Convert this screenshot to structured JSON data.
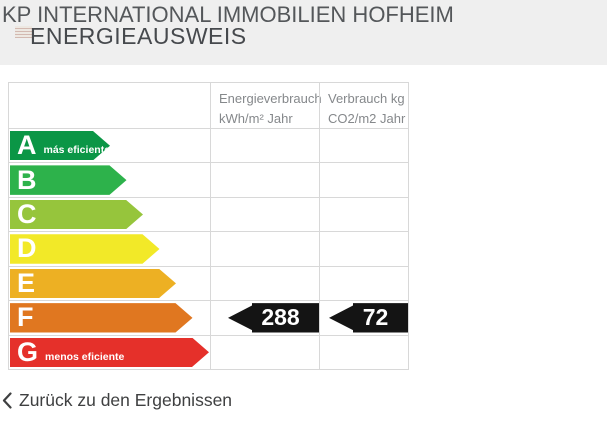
{
  "header": {
    "site_title": "KP INTERNATIONAL IMMOBILIEN HOFHEIM",
    "page_title": "ENERGIEAUSWEIS"
  },
  "energy_table": {
    "col_energy_header": "Energieverbrauch\nkWh/m² Jahr",
    "col_co2_header": "Verbrauch kg\nCO2/m2 Jahr",
    "scale": [
      {
        "letter": "A",
        "label": "más eficiente",
        "color": "#0b9646"
      },
      {
        "letter": "B",
        "label": "",
        "color": "#2db24b"
      },
      {
        "letter": "C",
        "label": "",
        "color": "#96c53c"
      },
      {
        "letter": "D",
        "label": "",
        "color": "#f2e928"
      },
      {
        "letter": "E",
        "label": "",
        "color": "#edb023"
      },
      {
        "letter": "F",
        "label": "",
        "color": "#e07720"
      },
      {
        "letter": "G",
        "label": "menos eficiente",
        "color": "#e5302a"
      }
    ],
    "rating_row": "F",
    "values": {
      "energy_kwh": "288",
      "co2_kg": "72"
    },
    "value_badge_color": "#141414"
  },
  "footer": {
    "back_link_label": "Zurück zu den Ergebnissen"
  },
  "chart_data": {
    "type": "table",
    "title": "Energieausweis",
    "categories": [
      "A",
      "B",
      "C",
      "D",
      "E",
      "F",
      "G"
    ],
    "category_labels": {
      "A": "más eficiente",
      "G": "menos eficiente"
    },
    "columns": [
      "Energieverbrauch kWh/m² Jahr",
      "Verbrauch kg CO2/m2 Jahr"
    ],
    "rated_class": "F",
    "values": {
      "Energieverbrauch kWh/m² Jahr": 288,
      "Verbrauch kg CO2/m2 Jahr": 72
    }
  }
}
